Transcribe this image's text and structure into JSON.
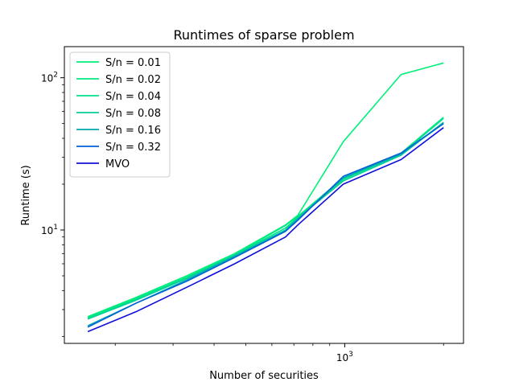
{
  "chart_data": {
    "type": "line",
    "title": "Runtimes of sparse problem",
    "xlabel": "Number of securities",
    "ylabel": "Runtime (s)",
    "x_scale": "log",
    "y_scale": "log",
    "xlim": [
      140,
      2300
    ],
    "ylim": [
      1.8,
      160
    ],
    "x_ticks": [
      {
        "value": 1000,
        "mantissa": "10",
        "exponent": "3"
      }
    ],
    "y_ticks": [
      {
        "value": 10,
        "mantissa": "10",
        "exponent": "1"
      },
      {
        "value": 100,
        "mantissa": "10",
        "exponent": "2"
      }
    ],
    "x": [
      165,
      231,
      330,
      462,
      660,
      720,
      990,
      1485,
      2000
    ],
    "legend_position": "upper left",
    "grid": false,
    "series": [
      {
        "name": "S/n = 0.01",
        "color": "#00f07a",
        "values": [
          2.7,
          3.6,
          5.0,
          7.0,
          10.8,
          12.5,
          38.0,
          105.0,
          125.0
        ]
      },
      {
        "name": "S/n = 0.02",
        "color": "#00ea80",
        "values": [
          2.65,
          3.55,
          4.9,
          6.9,
          10.7,
          12.3,
          22.0,
          32.0,
          55.0
        ]
      },
      {
        "name": "S/n = 0.04",
        "color": "#00e08a",
        "values": [
          2.62,
          3.5,
          4.85,
          6.85,
          10.3,
          12.1,
          21.5,
          31.5,
          54.0
        ]
      },
      {
        "name": "S/n = 0.08",
        "color": "#00d19a",
        "values": [
          2.6,
          3.45,
          4.8,
          6.8,
          10.0,
          12.0,
          21.0,
          31.0,
          51.0
        ]
      },
      {
        "name": "S/n = 0.16",
        "color": "#00aab0",
        "values": [
          2.35,
          3.3,
          4.7,
          6.7,
          9.9,
          11.8,
          22.0,
          31.5,
          50.0
        ]
      },
      {
        "name": "S/n = 0.32",
        "color": "#0060d8",
        "values": [
          2.3,
          3.3,
          4.6,
          6.6,
          9.8,
          11.6,
          22.5,
          32.0,
          50.0
        ]
      },
      {
        "name": "MVO",
        "color": "#1010d8",
        "values": [
          2.15,
          2.9,
          4.2,
          6.0,
          9.0,
          10.8,
          20.0,
          29.0,
          47.0
        ]
      }
    ]
  }
}
